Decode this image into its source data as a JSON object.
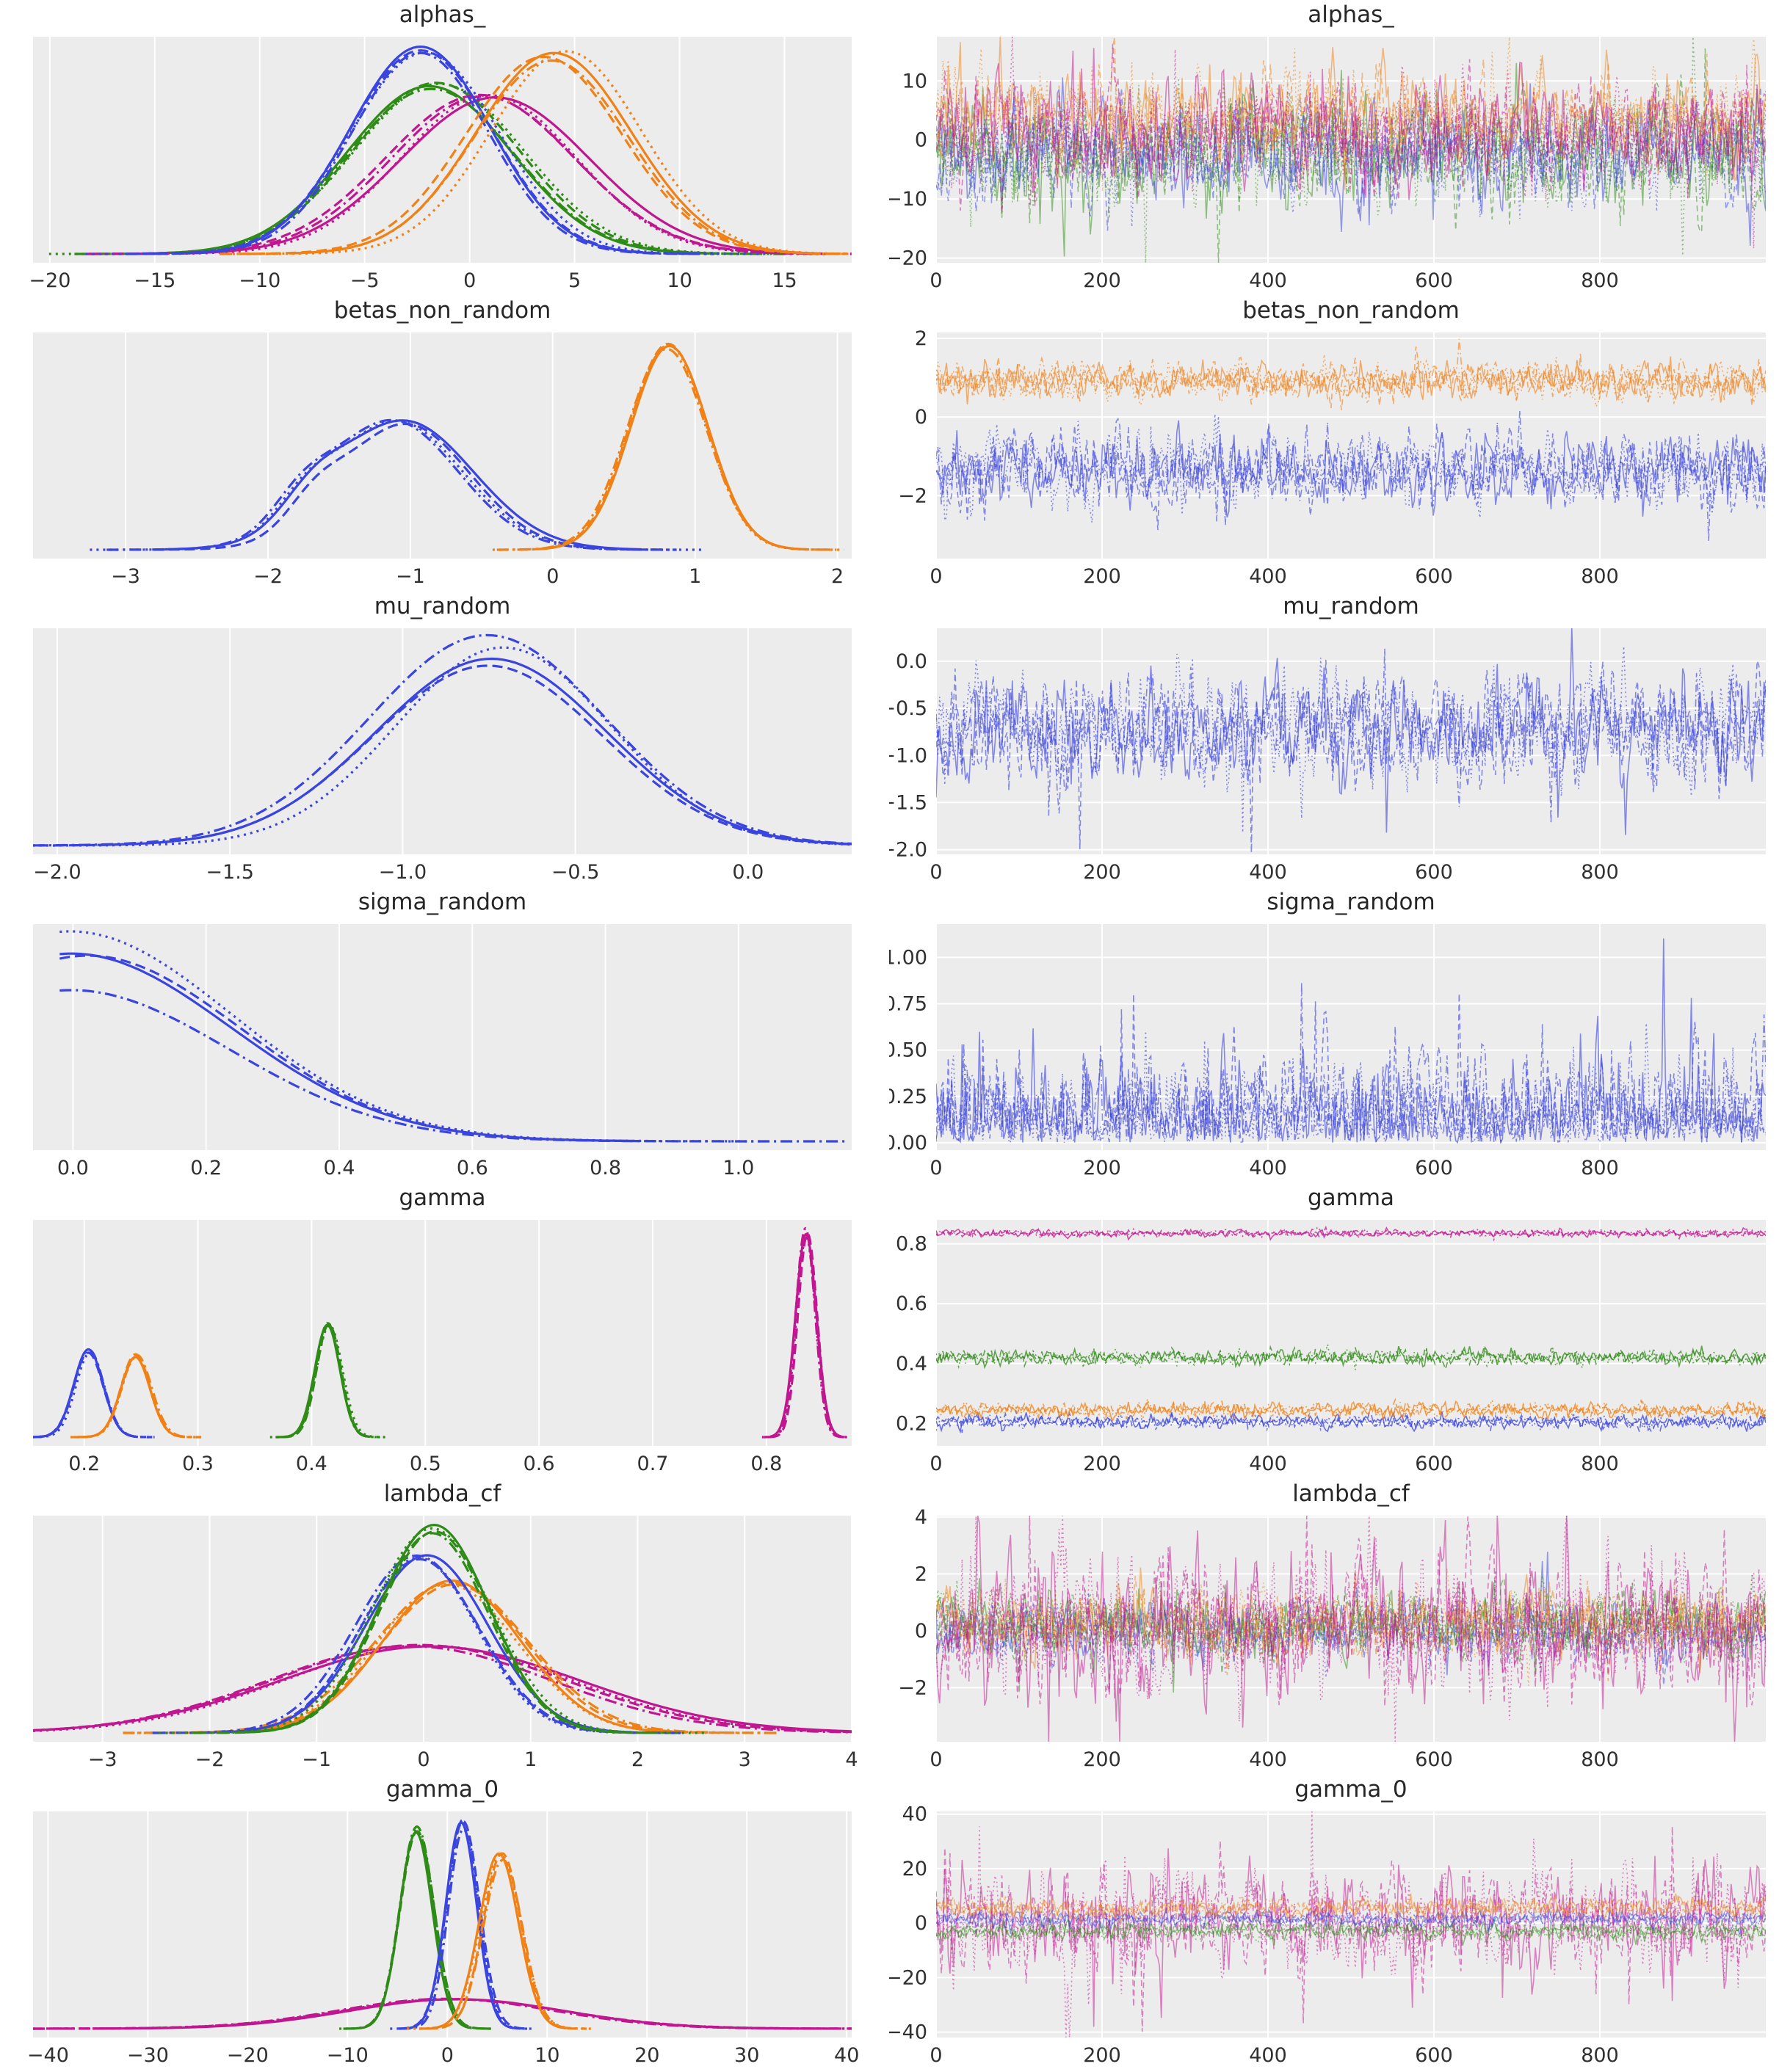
{
  "style": {
    "figure_bg": "#ffffff",
    "axes_bg": "#ececec",
    "grid_color": "#ffffff",
    "title_color": "#262626",
    "tick_color": "#303030"
  },
  "palette": {
    "blue": "#3a44de",
    "orange": "#f08116",
    "green": "#2f8b17",
    "magenta": "#c01690"
  },
  "chart_data": [
    {
      "name": "alphas_",
      "kde": {
        "type": "line",
        "title": "alphas_",
        "xlim": [
          -20.8,
          18.2
        ],
        "xticks": [
          {
            "v": -20,
            "label": "−20"
          },
          {
            "v": -15,
            "label": "−15"
          },
          {
            "v": -10,
            "label": "−10"
          },
          {
            "v": -5,
            "label": "−5"
          },
          {
            "v": 0,
            "label": "0"
          },
          {
            "v": 5,
            "label": "5"
          },
          {
            "v": 10,
            "label": "10"
          },
          {
            "v": 15,
            "label": "15"
          }
        ],
        "series": [
          {
            "color": "green",
            "mean": -1.8,
            "sd": 4.0,
            "peak": 0.82,
            "chains": 4
          },
          {
            "color": "magenta",
            "mean": 0.9,
            "sd": 4.4,
            "peak": 0.77,
            "chains": 4
          },
          {
            "color": "blue",
            "mean": -2.2,
            "sd": 3.4,
            "peak": 1.0,
            "chains": 4
          },
          {
            "color": "orange",
            "mean": 4.2,
            "sd": 3.6,
            "peak": 0.97,
            "chains": 4
          }
        ]
      },
      "trace": {
        "type": "line",
        "title": "alphas_",
        "xlim": [
          0,
          1000
        ],
        "xticks": [
          {
            "v": 0,
            "label": "0"
          },
          {
            "v": 200,
            "label": "200"
          },
          {
            "v": 400,
            "label": "400"
          },
          {
            "v": 600,
            "label": "600"
          },
          {
            "v": 800,
            "label": "800"
          }
        ],
        "ylim": [
          -20.8,
          17.5
        ],
        "yticks": [
          {
            "v": 10,
            "label": "10"
          },
          {
            "v": 0,
            "label": "0"
          },
          {
            "v": -10,
            "label": "−10"
          },
          {
            "v": -20,
            "label": "−20"
          }
        ],
        "alpha": 0.5,
        "series": [
          {
            "color": "green",
            "center": -2.0,
            "sd": 4.6,
            "chains": 3,
            "spikeP": 0.04,
            "spike": 1.8
          },
          {
            "color": "blue",
            "center": -2.2,
            "sd": 4.0,
            "chains": 3,
            "spikeP": 0.04,
            "spike": 1.8
          },
          {
            "color": "orange",
            "center": 4.0,
            "sd": 4.0,
            "chains": 3,
            "spikeP": 0.04,
            "spike": 1.8
          },
          {
            "color": "magenta",
            "center": 1.0,
            "sd": 4.3,
            "chains": 3,
            "spikeP": 0.04,
            "spike": 1.9
          }
        ]
      }
    },
    {
      "name": "betas_non_random",
      "kde": {
        "type": "line",
        "title": "betas_non_random",
        "xlim": [
          -3.65,
          2.1
        ],
        "xticks": [
          {
            "v": -3,
            "label": "−3"
          },
          {
            "v": -2,
            "label": "−2"
          },
          {
            "v": -1,
            "label": "−1"
          },
          {
            "v": 0,
            "label": "0"
          },
          {
            "v": 1,
            "label": "1"
          },
          {
            "v": 2,
            "label": "2"
          }
        ],
        "series": [
          {
            "color": "blue",
            "components": [
              {
                "m": -1.08,
                "sd": 0.47,
                "w": 1
              },
              {
                "m": -1.72,
                "sd": 0.2,
                "w": 0.2
              }
            ],
            "peak": 0.63,
            "chains": 4
          },
          {
            "color": "orange",
            "mean": 0.82,
            "sd": 0.27,
            "peak": 1.0,
            "chains": 4
          }
        ]
      },
      "trace": {
        "type": "line",
        "title": "betas_non_random",
        "xlim": [
          0,
          1000
        ],
        "xticks": [
          {
            "v": 0,
            "label": "0"
          },
          {
            "v": 200,
            "label": "200"
          },
          {
            "v": 400,
            "label": "400"
          },
          {
            "v": 600,
            "label": "600"
          },
          {
            "v": 800,
            "label": "800"
          }
        ],
        "ylim": [
          -3.6,
          2.15
        ],
        "yticks": [
          {
            "v": 2,
            "label": "2"
          },
          {
            "v": 0,
            "label": "0"
          },
          {
            "v": -2,
            "label": "−2"
          }
        ],
        "alpha": 0.6,
        "series": [
          {
            "color": "orange",
            "center": 0.92,
            "sd": 0.22,
            "chains": 4,
            "spikeP": 0.03,
            "spike": 1.7
          },
          {
            "color": "blue",
            "center": -1.35,
            "sd": 0.45,
            "chains": 4,
            "spikeP": 0.035,
            "spike": 1.8
          }
        ]
      }
    },
    {
      "name": "mu_random",
      "kde": {
        "type": "line",
        "title": "mu_random",
        "xlim": [
          -2.07,
          0.3
        ],
        "xticks": [
          {
            "v": -2.0,
            "label": "−2.0"
          },
          {
            "v": -1.5,
            "label": "−1.5"
          },
          {
            "v": -1.0,
            "label": "−1.0"
          },
          {
            "v": -0.5,
            "label": "−0.5"
          },
          {
            "v": 0.0,
            "label": "0.0"
          }
        ],
        "series": [
          {
            "color": "blue",
            "mean": -0.72,
            "sd": 0.33,
            "peak": 0.96,
            "chain_peaks": [
              0.95,
              0.94,
              1.02,
              1.07
            ],
            "chains": 4
          }
        ]
      },
      "trace": {
        "type": "line",
        "title": "mu_random",
        "xlim": [
          0,
          1000
        ],
        "xticks": [
          {
            "v": 0,
            "label": "0"
          },
          {
            "v": 200,
            "label": "200"
          },
          {
            "v": 400,
            "label": "400"
          },
          {
            "v": 600,
            "label": "600"
          },
          {
            "v": 800,
            "label": "800"
          }
        ],
        "ylim": [
          -2.05,
          0.35
        ],
        "yticks": [
          {
            "v": 0.0,
            "label": "0.0"
          },
          {
            "v": -0.5,
            "label": "−0.5"
          },
          {
            "v": -1.0,
            "label": "−1.0"
          },
          {
            "v": -1.5,
            "label": "−1.5"
          },
          {
            "v": -2.0,
            "label": "−2.0"
          }
        ],
        "alpha": 0.6,
        "series": [
          {
            "color": "blue",
            "center": -0.7,
            "sd": 0.28,
            "chains": 4,
            "spikeP": 0.03,
            "spike": 2.0
          }
        ]
      }
    },
    {
      "name": "sigma_random",
      "kde": {
        "type": "line",
        "title": "sigma_random",
        "xlim": [
          -0.06,
          1.17
        ],
        "xticks": [
          {
            "v": 0.0,
            "label": "0.0"
          },
          {
            "v": 0.2,
            "label": "0.2"
          },
          {
            "v": 0.4,
            "label": "0.4"
          },
          {
            "v": 0.6,
            "label": "0.6"
          },
          {
            "v": 0.8,
            "label": "0.8"
          },
          {
            "v": 1.0,
            "label": "1.0"
          }
        ],
        "series": [
          {
            "color": "blue",
            "mean": 0.0,
            "sd": 0.235,
            "peak": 0.95,
            "chain_peaks": [
              0.98,
              0.94,
              1.06,
              0.8
            ],
            "xmin": -0.02,
            "xmax": [
              0.84,
              0.88,
              1.04,
              1.16
            ],
            "chains": 4
          }
        ]
      },
      "trace": {
        "type": "line",
        "title": "sigma_random",
        "xlim": [
          0,
          1000
        ],
        "xticks": [
          {
            "v": 0,
            "label": "0"
          },
          {
            "v": 200,
            "label": "200"
          },
          {
            "v": 400,
            "label": "400"
          },
          {
            "v": 600,
            "label": "600"
          },
          {
            "v": 800,
            "label": "800"
          }
        ],
        "ylim": [
          -0.04,
          1.18
        ],
        "yticks": [
          {
            "v": 1.0,
            "label": "1.00"
          },
          {
            "v": 0.75,
            "label": "0.75"
          },
          {
            "v": 0.5,
            "label": "0.50"
          },
          {
            "v": 0.25,
            "label": "0.25"
          },
          {
            "v": 0.0,
            "label": "0.00"
          }
        ],
        "alpha": 0.6,
        "series": [
          {
            "color": "blue",
            "center": 0,
            "sd": 0.21,
            "half": true,
            "rho": 0.5,
            "chains": 4,
            "spikeP": 0.02,
            "spike": 2.0
          }
        ]
      }
    },
    {
      "name": "gamma",
      "kde": {
        "type": "line",
        "title": "gamma",
        "xlim": [
          0.155,
          0.875
        ],
        "xticks": [
          {
            "v": 0.2,
            "label": "0.2"
          },
          {
            "v": 0.3,
            "label": "0.3"
          },
          {
            "v": 0.4,
            "label": "0.4"
          },
          {
            "v": 0.5,
            "label": "0.5"
          },
          {
            "v": 0.6,
            "label": "0.6"
          },
          {
            "v": 0.7,
            "label": "0.7"
          },
          {
            "v": 0.8,
            "label": "0.8"
          }
        ],
        "series": [
          {
            "color": "blue",
            "mean": 0.205,
            "sd": 0.013,
            "peak": 0.42,
            "chains": 4
          },
          {
            "color": "orange",
            "mean": 0.245,
            "sd": 0.013,
            "peak": 0.4,
            "chains": 4
          },
          {
            "color": "green",
            "mean": 0.415,
            "sd": 0.011,
            "peak": 0.55,
            "chains": 4
          },
          {
            "color": "magenta",
            "mean": 0.835,
            "sd": 0.0085,
            "peak": 1.0,
            "chains": 4
          }
        ]
      },
      "trace": {
        "type": "line",
        "title": "gamma",
        "xlim": [
          0,
          1000
        ],
        "xticks": [
          {
            "v": 0,
            "label": "0"
          },
          {
            "v": 200,
            "label": "200"
          },
          {
            "v": 400,
            "label": "400"
          },
          {
            "v": 600,
            "label": "600"
          },
          {
            "v": 800,
            "label": "800"
          }
        ],
        "ylim": [
          0.125,
          0.88
        ],
        "yticks": [
          {
            "v": 0.8,
            "label": "0.8"
          },
          {
            "v": 0.6,
            "label": "0.6"
          },
          {
            "v": 0.4,
            "label": "0.4"
          },
          {
            "v": 0.2,
            "label": "0.2"
          }
        ],
        "alpha": 0.75,
        "series": [
          {
            "color": "blue",
            "center": 0.205,
            "sd": 0.011,
            "rho": 0.3,
            "chains": 3,
            "spikeP": 0.02,
            "spike": 1.6
          },
          {
            "color": "orange",
            "center": 0.245,
            "sd": 0.012,
            "rho": 0.3,
            "chains": 3,
            "spikeP": 0.02,
            "spike": 1.6
          },
          {
            "color": "green",
            "center": 0.42,
            "sd": 0.012,
            "rho": 0.3,
            "chains": 3,
            "spikeP": 0.02,
            "spike": 1.6
          },
          {
            "color": "magenta",
            "center": 0.835,
            "sd": 0.006,
            "rho": 0.3,
            "chains": 3,
            "spikeP": 0.02,
            "spike": 1.6
          }
        ]
      }
    },
    {
      "name": "lambda_cf",
      "kde": {
        "type": "line",
        "title": "lambda_cf",
        "xlim": [
          -3.65,
          4.0
        ],
        "xticks": [
          {
            "v": -3,
            "label": "−3"
          },
          {
            "v": -2,
            "label": "−2"
          },
          {
            "v": -1,
            "label": "−1"
          },
          {
            "v": 0,
            "label": "0"
          },
          {
            "v": 1,
            "label": "1"
          },
          {
            "v": 2,
            "label": "2"
          },
          {
            "v": 3,
            "label": "3"
          },
          {
            "v": 4,
            "label": "4"
          }
        ],
        "series": [
          {
            "color": "magenta",
            "mean": 0.0,
            "sd": 1.35,
            "peak": 0.43,
            "chains": 4
          },
          {
            "color": "orange",
            "mean": 0.28,
            "sd": 0.68,
            "peak": 0.73,
            "chains": 4
          },
          {
            "color": "blue",
            "mean": -0.02,
            "sd": 0.58,
            "peak": 0.86,
            "chains": 4
          },
          {
            "color": "green",
            "mean": 0.12,
            "sd": 0.52,
            "peak": 1.0,
            "chains": 4
          }
        ]
      },
      "trace": {
        "type": "line",
        "title": "lambda_cf",
        "xlim": [
          0,
          1000
        ],
        "xticks": [
          {
            "v": 0,
            "label": "0"
          },
          {
            "v": 200,
            "label": "200"
          },
          {
            "v": 400,
            "label": "400"
          },
          {
            "v": 600,
            "label": "600"
          },
          {
            "v": 800,
            "label": "800"
          }
        ],
        "ylim": [
          -3.9,
          4.05
        ],
        "yticks": [
          {
            "v": 4,
            "label": "4"
          },
          {
            "v": 2,
            "label": "2"
          },
          {
            "v": 0,
            "label": "0"
          },
          {
            "v": -2,
            "label": "−2"
          }
        ],
        "alpha": 0.5,
        "series": [
          {
            "color": "blue",
            "center": 0.0,
            "sd": 0.5,
            "chains": 3,
            "spikeP": 0.03,
            "spike": 1.8
          },
          {
            "color": "green",
            "center": 0.2,
            "sd": 0.55,
            "chains": 3,
            "spikeP": 0.03,
            "spike": 1.8
          },
          {
            "color": "orange",
            "center": 0.25,
            "sd": 0.6,
            "chains": 3,
            "spikeP": 0.03,
            "spike": 1.8
          },
          {
            "color": "magenta",
            "center": 0.1,
            "sd": 1.15,
            "chains": 3,
            "spikeP": 0.05,
            "spike": 2.2
          }
        ]
      }
    },
    {
      "name": "gamma_0",
      "kde": {
        "type": "line",
        "title": "gamma_0",
        "xlim": [
          -41.5,
          40.5
        ],
        "xticks": [
          {
            "v": -40,
            "label": "−40"
          },
          {
            "v": -30,
            "label": "−30"
          },
          {
            "v": -20,
            "label": "−20"
          },
          {
            "v": -10,
            "label": "−10"
          },
          {
            "v": 0,
            "label": "0"
          },
          {
            "v": 10,
            "label": "10"
          },
          {
            "v": 20,
            "label": "20"
          },
          {
            "v": 30,
            "label": "30"
          },
          {
            "v": 40,
            "label": "40"
          }
        ],
        "series": [
          {
            "color": "magenta",
            "mean": 1.0,
            "sd": 11.0,
            "peak": 0.145,
            "chains": 4
          },
          {
            "color": "green",
            "mean": -3.0,
            "sd": 1.7,
            "peak": 0.97,
            "chains": 4
          },
          {
            "color": "blue",
            "mean": 1.5,
            "sd": 1.6,
            "peak": 1.0,
            "chains": 4
          },
          {
            "color": "orange",
            "mean": 5.5,
            "sd": 2.0,
            "peak": 0.84,
            "chains": 4
          }
        ]
      },
      "trace": {
        "type": "line",
        "title": "gamma_0",
        "xlim": [
          0,
          1000
        ],
        "xticks": [
          {
            "v": 0,
            "label": "0"
          },
          {
            "v": 200,
            "label": "200"
          },
          {
            "v": 400,
            "label": "400"
          },
          {
            "v": 600,
            "label": "600"
          },
          {
            "v": 800,
            "label": "800"
          }
        ],
        "ylim": [
          -42,
          41
        ],
        "yticks": [
          {
            "v": 40,
            "label": "40"
          },
          {
            "v": 20,
            "label": "20"
          },
          {
            "v": 0,
            "label": "0"
          },
          {
            "v": -20,
            "label": "−20"
          },
          {
            "v": -40,
            "label": "−40"
          }
        ],
        "alpha": 0.5,
        "series": [
          {
            "color": "magenta",
            "center": 0.5,
            "sd": 9.0,
            "chains": 3,
            "spikeP": 0.06,
            "spike": 2.4
          },
          {
            "color": "green",
            "center": -3.0,
            "sd": 1.6,
            "chains": 3,
            "spikeP": 0.03,
            "spike": 1.7
          },
          {
            "color": "blue",
            "center": 1.5,
            "sd": 1.5,
            "chains": 3,
            "spikeP": 0.03,
            "spike": 1.7
          },
          {
            "color": "orange",
            "center": 5.5,
            "sd": 1.8,
            "chains": 3,
            "spikeP": 0.03,
            "spike": 1.7
          }
        ]
      }
    }
  ]
}
